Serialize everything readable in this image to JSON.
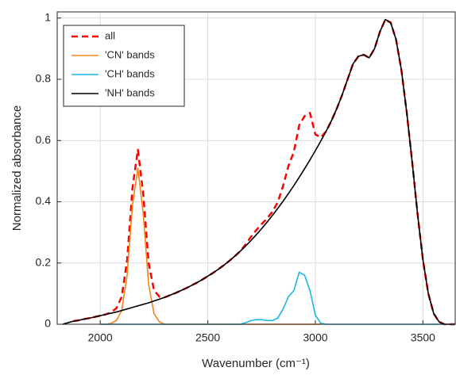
{
  "chart_data": {
    "type": "line",
    "xlabel": "Wavenumber (cm⁻¹)",
    "ylabel": "Normalized absorbance",
    "x": [
      1800,
      1825,
      1850,
      1875,
      1900,
      1925,
      1950,
      1975,
      2000,
      2025,
      2050,
      2075,
      2100,
      2125,
      2150,
      2175,
      2200,
      2225,
      2250,
      2275,
      2300,
      2325,
      2350,
      2375,
      2400,
      2425,
      2450,
      2475,
      2500,
      2525,
      2550,
      2575,
      2600,
      2625,
      2650,
      2675,
      2700,
      2725,
      2750,
      2775,
      2800,
      2825,
      2850,
      2875,
      2900,
      2925,
      2950,
      2975,
      3000,
      3025,
      3050,
      3075,
      3100,
      3125,
      3150,
      3175,
      3200,
      3225,
      3250,
      3275,
      3300,
      3325,
      3350,
      3375,
      3400,
      3425,
      3450,
      3475,
      3500,
      3525,
      3550,
      3575,
      3600,
      3625,
      3650
    ],
    "series": [
      {
        "name": "all",
        "color": "#ff0000",
        "line_style": "dashed",
        "values": [
          null,
          null,
          null,
          0.01,
          0.013,
          0.017,
          0.02,
          0.024,
          0.028,
          0.032,
          0.039,
          0.052,
          0.09,
          0.21,
          0.445,
          0.57,
          0.425,
          0.2,
          0.111,
          0.09,
          0.088,
          0.095,
          0.102,
          0.11,
          0.118,
          0.127,
          0.136,
          0.146,
          0.157,
          0.168,
          0.18,
          0.193,
          0.207,
          0.222,
          0.238,
          0.26,
          0.285,
          0.307,
          0.327,
          0.345,
          0.367,
          0.398,
          0.452,
          0.517,
          0.563,
          0.65,
          0.68,
          0.69,
          0.62,
          0.61,
          0.63,
          0.665,
          0.705,
          0.75,
          0.8,
          0.85,
          0.875,
          0.88,
          0.87,
          0.9,
          0.955,
          0.995,
          0.985,
          0.93,
          0.83,
          0.69,
          0.53,
          0.36,
          0.21,
          0.1,
          0.035,
          0.008,
          0,
          0,
          0
        ]
      },
      {
        "name": "'CN' bands",
        "color": "#f0851a",
        "line_style": "solid",
        "values": [
          null,
          null,
          null,
          null,
          null,
          null,
          null,
          null,
          0,
          0,
          0.003,
          0.012,
          0.045,
          0.16,
          0.39,
          0.51,
          0.36,
          0.13,
          0.035,
          0.008,
          0,
          0,
          0,
          0,
          0,
          0,
          0,
          0,
          0,
          0,
          0,
          0,
          0,
          0,
          0,
          0,
          0,
          0,
          0,
          0,
          0,
          0,
          0,
          0,
          0,
          0,
          0,
          0,
          0,
          0,
          null,
          null,
          null,
          null,
          null,
          null,
          null,
          null,
          null,
          null,
          null,
          null,
          null,
          null,
          null,
          null,
          null,
          null,
          null,
          null,
          null,
          null,
          null,
          null,
          null
        ]
      },
      {
        "name": "'CH' bands",
        "color": "#1cb4e6",
        "line_style": "solid",
        "values": [
          null,
          null,
          null,
          null,
          null,
          null,
          null,
          null,
          0,
          0,
          0,
          0,
          0,
          0,
          0,
          0,
          0,
          0,
          0,
          0,
          0,
          0,
          0,
          0,
          0,
          0,
          0,
          0,
          0,
          0,
          0,
          0,
          0,
          0,
          0,
          0.005,
          0.012,
          0.015,
          0.015,
          0.012,
          0.012,
          0.02,
          0.05,
          0.09,
          0.11,
          0.17,
          0.16,
          0.11,
          0.03,
          0.003,
          0,
          0,
          0,
          0,
          0,
          0,
          0,
          0,
          0,
          0,
          0,
          0,
          0,
          0,
          0,
          0,
          0,
          0,
          0,
          0,
          0,
          0,
          0,
          0,
          0
        ]
      },
      {
        "name": "'NH' bands",
        "color": "#000000",
        "line_style": "solid",
        "values": [
          null,
          0,
          0.005,
          0.01,
          0.013,
          0.017,
          0.02,
          0.024,
          0.028,
          0.032,
          0.036,
          0.04,
          0.045,
          0.05,
          0.055,
          0.06,
          0.065,
          0.07,
          0.076,
          0.082,
          0.088,
          0.095,
          0.102,
          0.11,
          0.118,
          0.127,
          0.136,
          0.146,
          0.157,
          0.168,
          0.18,
          0.193,
          0.207,
          0.222,
          0.238,
          0.255,
          0.273,
          0.292,
          0.312,
          0.333,
          0.355,
          0.378,
          0.402,
          0.427,
          0.453,
          0.48,
          0.508,
          0.537,
          0.567,
          0.598,
          0.63,
          0.665,
          0.705,
          0.75,
          0.8,
          0.85,
          0.875,
          0.88,
          0.87,
          0.9,
          0.955,
          0.995,
          0.985,
          0.93,
          0.83,
          0.69,
          0.53,
          0.36,
          0.21,
          0.1,
          0.035,
          0.008,
          0,
          0,
          0
        ]
      }
    ],
    "xlim": [
      1800,
      3650
    ],
    "xticks": [
      2000,
      2500,
      3000,
      3500
    ],
    "ylim": [
      0,
      1.02
    ],
    "yticks": [
      0,
      0.2,
      0.4,
      0.6,
      0.8,
      1
    ],
    "grid": true,
    "legend": "upper-left"
  }
}
